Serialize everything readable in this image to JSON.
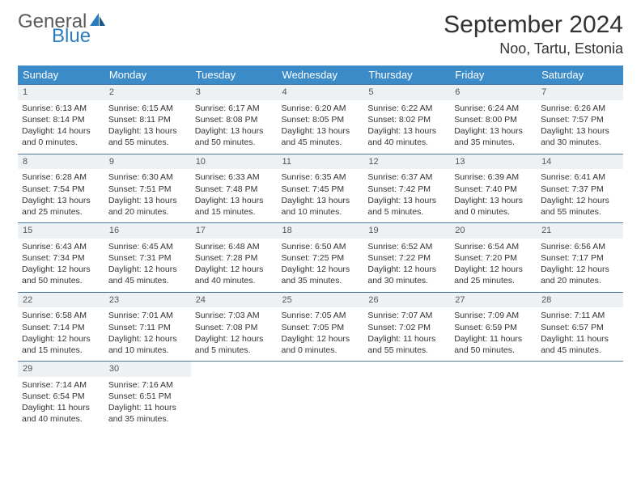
{
  "brand": {
    "general": "General",
    "blue": "Blue"
  },
  "title": "September 2024",
  "location": "Noo, Tartu, Estonia",
  "colors": {
    "header_bg": "#3b8bc9",
    "header_text": "#ffffff",
    "daynum_bg": "#eef1f3",
    "border": "#4a7aa8",
    "text": "#333333",
    "logo_gray": "#5a5a5a",
    "logo_blue": "#2b7bbf"
  },
  "weekdays": [
    "Sunday",
    "Monday",
    "Tuesday",
    "Wednesday",
    "Thursday",
    "Friday",
    "Saturday"
  ],
  "days": [
    {
      "n": "1",
      "sr": "6:13 AM",
      "ss": "8:14 PM",
      "dl": "14 hours and 0 minutes."
    },
    {
      "n": "2",
      "sr": "6:15 AM",
      "ss": "8:11 PM",
      "dl": "13 hours and 55 minutes."
    },
    {
      "n": "3",
      "sr": "6:17 AM",
      "ss": "8:08 PM",
      "dl": "13 hours and 50 minutes."
    },
    {
      "n": "4",
      "sr": "6:20 AM",
      "ss": "8:05 PM",
      "dl": "13 hours and 45 minutes."
    },
    {
      "n": "5",
      "sr": "6:22 AM",
      "ss": "8:02 PM",
      "dl": "13 hours and 40 minutes."
    },
    {
      "n": "6",
      "sr": "6:24 AM",
      "ss": "8:00 PM",
      "dl": "13 hours and 35 minutes."
    },
    {
      "n": "7",
      "sr": "6:26 AM",
      "ss": "7:57 PM",
      "dl": "13 hours and 30 minutes."
    },
    {
      "n": "8",
      "sr": "6:28 AM",
      "ss": "7:54 PM",
      "dl": "13 hours and 25 minutes."
    },
    {
      "n": "9",
      "sr": "6:30 AM",
      "ss": "7:51 PM",
      "dl": "13 hours and 20 minutes."
    },
    {
      "n": "10",
      "sr": "6:33 AM",
      "ss": "7:48 PM",
      "dl": "13 hours and 15 minutes."
    },
    {
      "n": "11",
      "sr": "6:35 AM",
      "ss": "7:45 PM",
      "dl": "13 hours and 10 minutes."
    },
    {
      "n": "12",
      "sr": "6:37 AM",
      "ss": "7:42 PM",
      "dl": "13 hours and 5 minutes."
    },
    {
      "n": "13",
      "sr": "6:39 AM",
      "ss": "7:40 PM",
      "dl": "13 hours and 0 minutes."
    },
    {
      "n": "14",
      "sr": "6:41 AM",
      "ss": "7:37 PM",
      "dl": "12 hours and 55 minutes."
    },
    {
      "n": "15",
      "sr": "6:43 AM",
      "ss": "7:34 PM",
      "dl": "12 hours and 50 minutes."
    },
    {
      "n": "16",
      "sr": "6:45 AM",
      "ss": "7:31 PM",
      "dl": "12 hours and 45 minutes."
    },
    {
      "n": "17",
      "sr": "6:48 AM",
      "ss": "7:28 PM",
      "dl": "12 hours and 40 minutes."
    },
    {
      "n": "18",
      "sr": "6:50 AM",
      "ss": "7:25 PM",
      "dl": "12 hours and 35 minutes."
    },
    {
      "n": "19",
      "sr": "6:52 AM",
      "ss": "7:22 PM",
      "dl": "12 hours and 30 minutes."
    },
    {
      "n": "20",
      "sr": "6:54 AM",
      "ss": "7:20 PM",
      "dl": "12 hours and 25 minutes."
    },
    {
      "n": "21",
      "sr": "6:56 AM",
      "ss": "7:17 PM",
      "dl": "12 hours and 20 minutes."
    },
    {
      "n": "22",
      "sr": "6:58 AM",
      "ss": "7:14 PM",
      "dl": "12 hours and 15 minutes."
    },
    {
      "n": "23",
      "sr": "7:01 AM",
      "ss": "7:11 PM",
      "dl": "12 hours and 10 minutes."
    },
    {
      "n": "24",
      "sr": "7:03 AM",
      "ss": "7:08 PM",
      "dl": "12 hours and 5 minutes."
    },
    {
      "n": "25",
      "sr": "7:05 AM",
      "ss": "7:05 PM",
      "dl": "12 hours and 0 minutes."
    },
    {
      "n": "26",
      "sr": "7:07 AM",
      "ss": "7:02 PM",
      "dl": "11 hours and 55 minutes."
    },
    {
      "n": "27",
      "sr": "7:09 AM",
      "ss": "6:59 PM",
      "dl": "11 hours and 50 minutes."
    },
    {
      "n": "28",
      "sr": "7:11 AM",
      "ss": "6:57 PM",
      "dl": "11 hours and 45 minutes."
    },
    {
      "n": "29",
      "sr": "7:14 AM",
      "ss": "6:54 PM",
      "dl": "11 hours and 40 minutes."
    },
    {
      "n": "30",
      "sr": "7:16 AM",
      "ss": "6:51 PM",
      "dl": "11 hours and 35 minutes."
    }
  ],
  "labels": {
    "sunrise": "Sunrise: ",
    "sunset": "Sunset: ",
    "daylight": "Daylight: "
  }
}
